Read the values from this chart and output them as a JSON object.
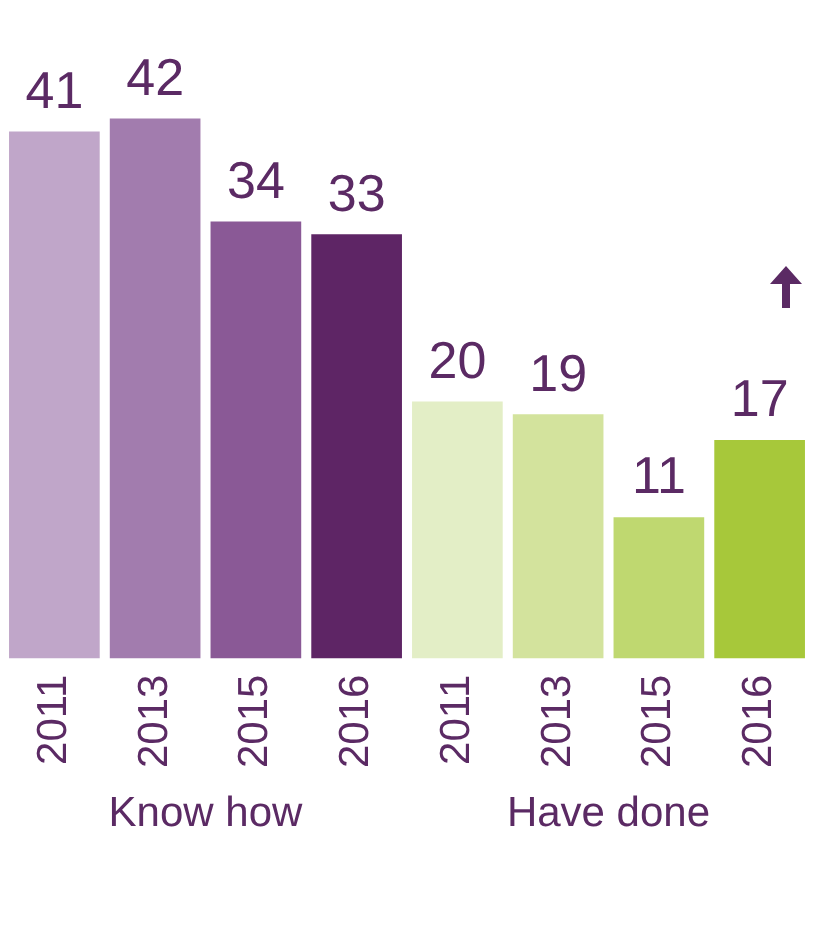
{
  "chart_data": {
    "type": "bar",
    "categories": [
      "2011",
      "2013",
      "2015",
      "2016",
      "2011",
      "2013",
      "2015",
      "2016"
    ],
    "values": [
      41,
      42,
      34,
      33,
      20,
      19,
      11,
      17
    ],
    "colors": [
      "#c0a6c9",
      "#a27cae",
      "#8a5996",
      "#5e2565",
      "#e3eec6",
      "#d3e39d",
      "#bfd870",
      "#a7c83a"
    ],
    "data_labels": true,
    "grid": false,
    "annotations": [
      "Know how",
      "Have done"
    ]
  }
}
